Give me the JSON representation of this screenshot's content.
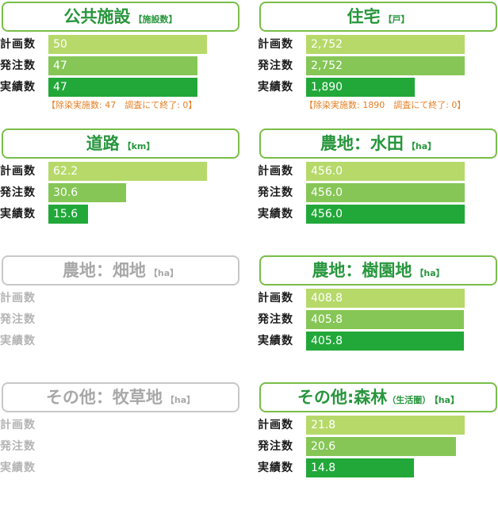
{
  "colors": {
    "planned": "#b6d96a",
    "ordered": "#86c656",
    "completed": "#21a839",
    "note": "#e67e22",
    "disabled": "#b4b4b4"
  },
  "chart_data": [
    {
      "type": "bar",
      "title": "公共施設",
      "unit": "【施設数】",
      "categories": [
        "計画数",
        "発注数",
        "実績数"
      ],
      "values": [
        50,
        47,
        47
      ],
      "labels": [
        "50",
        "47",
        "47"
      ],
      "xlim": [
        0,
        50
      ],
      "note": "【除染実施数: 47　調査にて終了: 0】"
    },
    {
      "type": "bar",
      "title": "住宅",
      "unit": "【戸】",
      "categories": [
        "計画数",
        "発注数",
        "実績数"
      ],
      "values": [
        2752,
        2752,
        1890
      ],
      "labels": [
        "2,752",
        "2,752",
        "1,890"
      ],
      "xlim": [
        0,
        2752
      ],
      "note": "【除染実施数: 1890　調査にて終了: 0】"
    },
    {
      "type": "bar",
      "title": "道路",
      "unit": "【km】",
      "categories": [
        "計画数",
        "発注数",
        "実績数"
      ],
      "values": [
        62.2,
        30.6,
        15.6
      ],
      "labels": [
        "62.2",
        "30.6",
        "15.6"
      ],
      "xlim": [
        0,
        62.2
      ]
    },
    {
      "type": "bar",
      "title": "農地：水田",
      "unit": "【ha】",
      "categories": [
        "計画数",
        "発注数",
        "実績数"
      ],
      "values": [
        456.0,
        456.0,
        456.0
      ],
      "labels": [
        "456.0",
        "456.0",
        "456.0"
      ],
      "xlim": [
        0,
        456.0
      ]
    },
    {
      "type": "bar",
      "title": "農地：畑地",
      "unit": "【ha】",
      "disabled": true,
      "categories": [
        "計画数",
        "発注数",
        "実績数"
      ],
      "values": [],
      "labels": []
    },
    {
      "type": "bar",
      "title": "農地：樹園地",
      "unit": "【ha】",
      "categories": [
        "計画数",
        "発注数",
        "実績数"
      ],
      "values": [
        408.8,
        405.8,
        405.8
      ],
      "labels": [
        "408.8",
        "405.8",
        "405.8"
      ],
      "xlim": [
        0,
        408.8
      ]
    },
    {
      "type": "bar",
      "title": "その他：牧草地",
      "unit": "【ha】",
      "disabled": true,
      "categories": [
        "計画数",
        "発注数",
        "実績数"
      ],
      "values": [],
      "labels": []
    },
    {
      "type": "bar",
      "title": "その他:森林",
      "subtitle": "（生活圏）",
      "unit": "【ha】",
      "categories": [
        "計画数",
        "発注数",
        "実績数"
      ],
      "values": [
        21.8,
        20.6,
        14.8
      ],
      "labels": [
        "21.8",
        "20.6",
        "14.8"
      ],
      "xlim": [
        0,
        21.8
      ]
    }
  ]
}
